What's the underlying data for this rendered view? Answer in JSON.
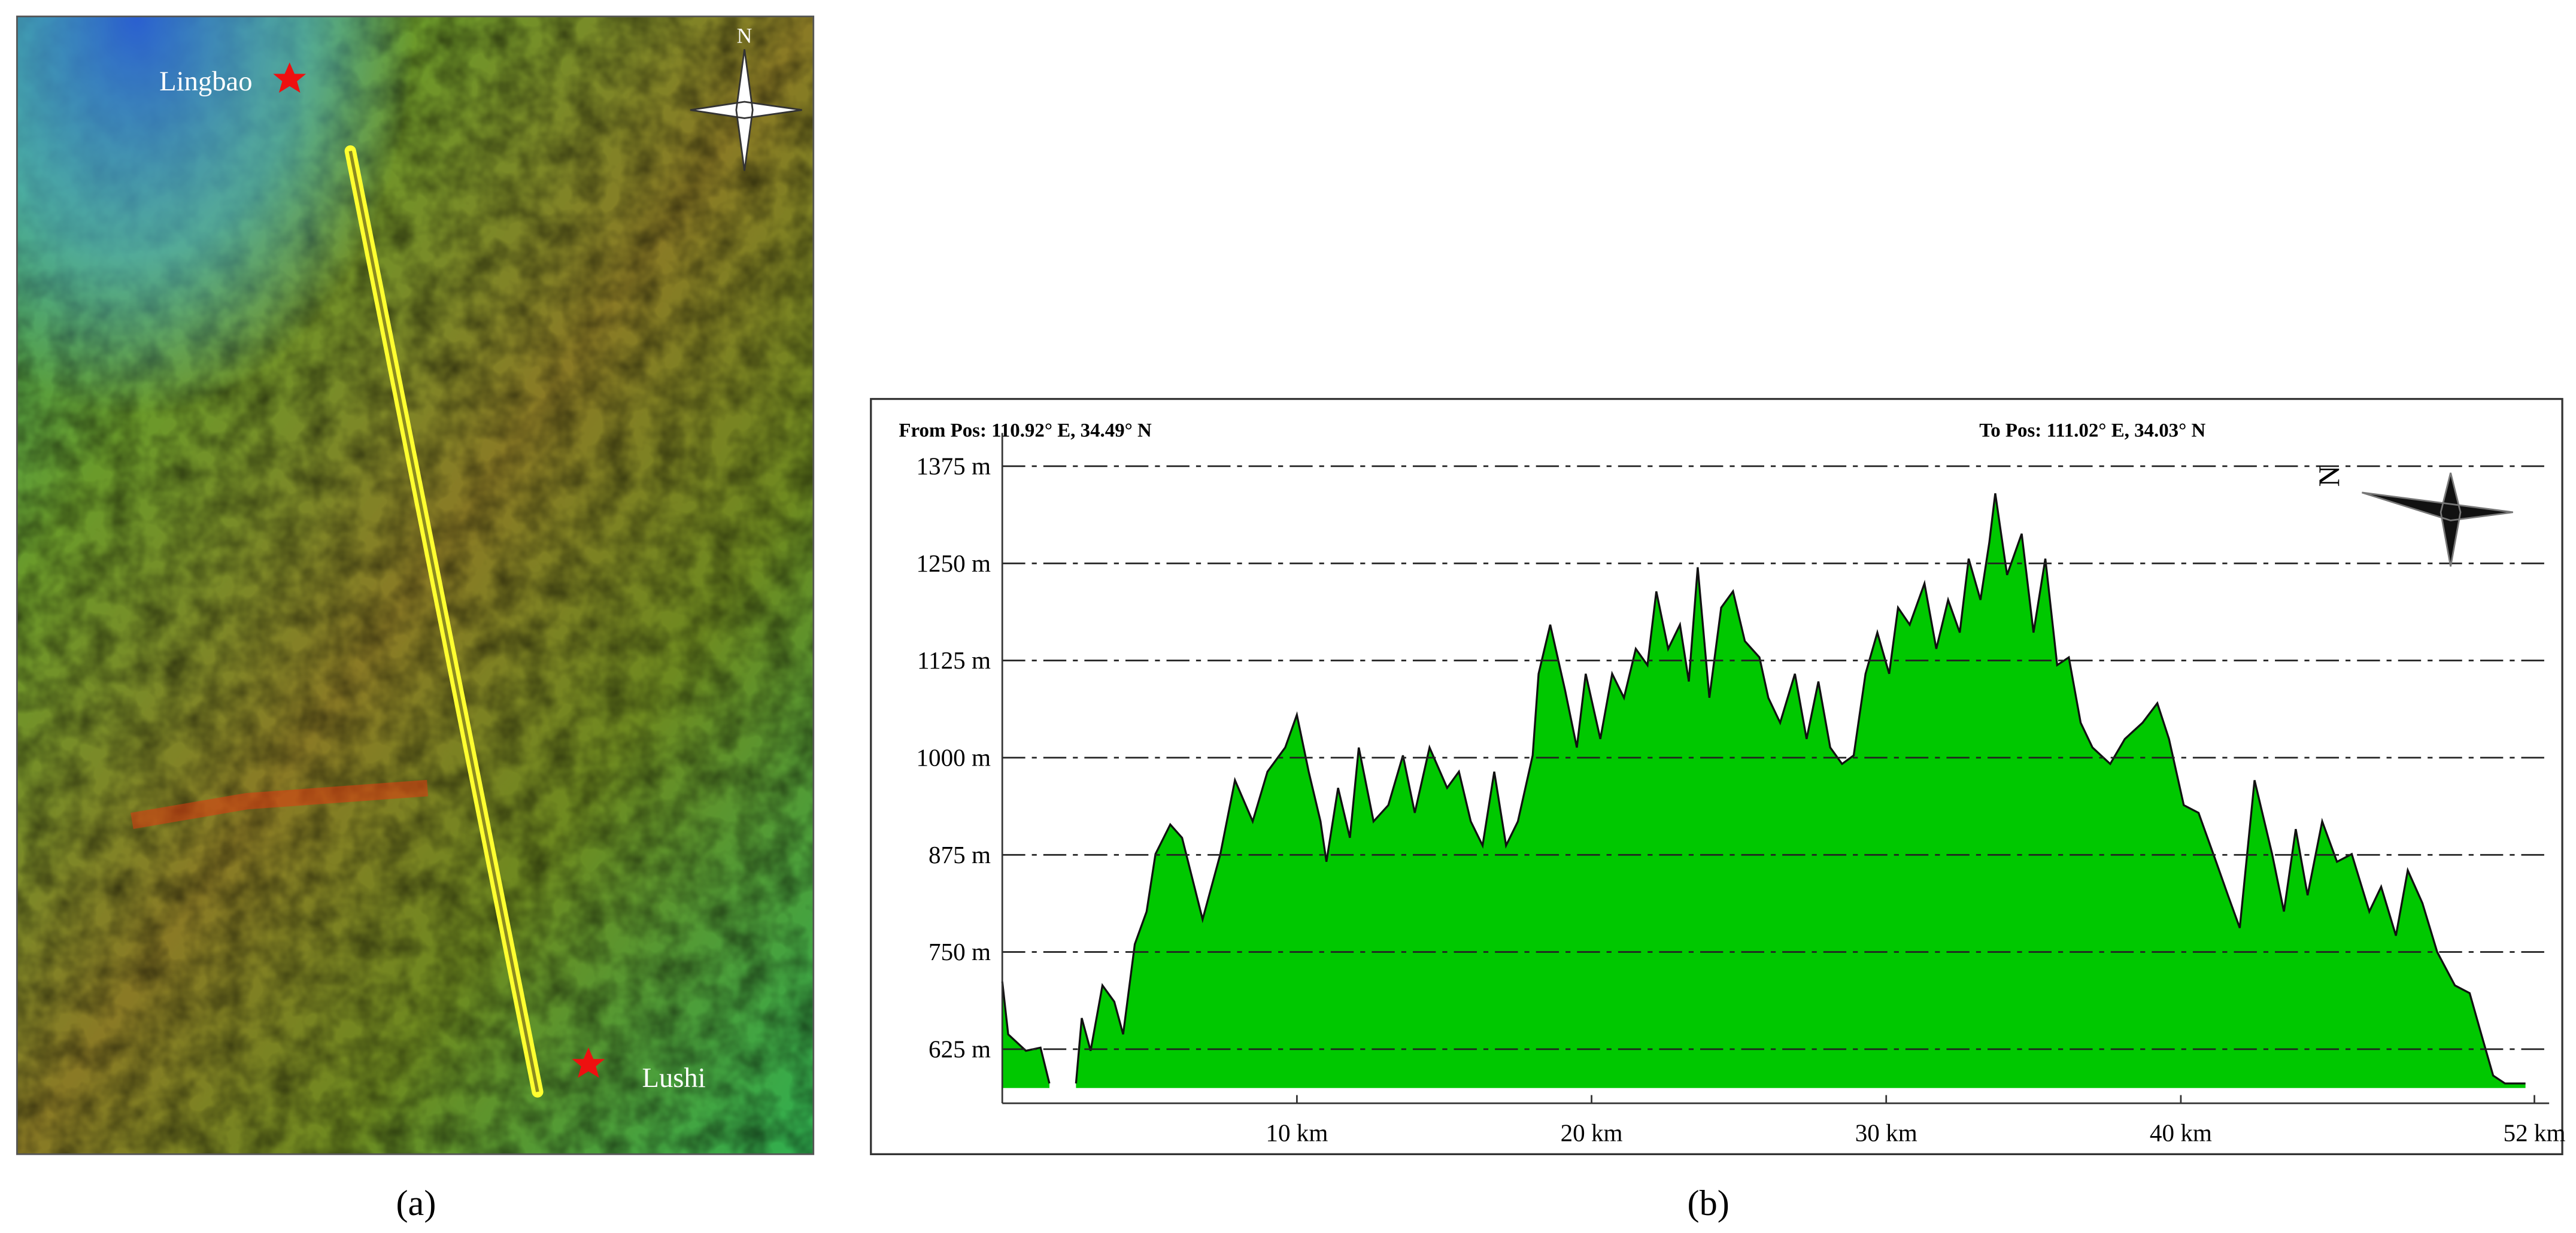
{
  "map": {
    "labels": [
      "Lingbao",
      "Lushi"
    ],
    "compass": "N"
  },
  "captions": [
    "(a)",
    "(b)"
  ],
  "chart_data": {
    "type": "area",
    "header_left": "From Pos:  110.92° E,  34.49° N",
    "header_right": "To Pos:  111.02° E,  34.03° N",
    "compass": "N",
    "x": [
      0,
      0.2,
      0.8,
      1.3,
      1.6,
      2.0,
      2.5,
      2.7,
      3.0,
      3.4,
      3.8,
      4.1,
      4.5,
      4.9,
      5.2,
      5.7,
      6.1,
      6.8,
      7.4,
      7.9,
      8.5,
      9.0,
      9.6,
      10.0,
      10.4,
      10.8,
      11.0,
      11.4,
      11.8,
      12.1,
      12.6,
      13.1,
      13.6,
      14.0,
      14.5,
      15.1,
      15.5,
      15.9,
      16.3,
      16.7,
      17.1,
      17.5,
      18.0,
      18.2,
      18.6,
      19.1,
      19.5,
      19.8,
      20.3,
      20.7,
      21.1,
      21.5,
      21.9,
      22.2,
      22.6,
      23.0,
      23.3,
      23.6,
      24.0,
      24.4,
      24.8,
      25.2,
      25.7,
      26.0,
      26.4,
      26.9,
      27.3,
      27.7,
      28.1,
      28.5,
      28.9,
      29.3,
      29.7,
      30.1,
      30.4,
      30.8,
      31.3,
      31.7,
      32.1,
      32.5,
      32.8,
      33.2,
      33.5,
      33.7,
      34.1,
      34.6,
      35.0,
      35.4,
      35.8,
      36.2,
      36.6,
      37.0,
      37.6,
      38.1,
      38.7,
      39.2,
      39.6,
      40.1,
      40.6,
      41.2,
      41.6,
      42.0,
      42.5,
      43.1,
      43.5,
      43.9,
      44.3,
      44.8,
      45.3,
      45.8,
      46.4,
      46.8,
      47.3,
      47.7,
      48.2,
      48.7,
      49.3,
      49.8,
      50.2,
      50.6,
      51.0,
      51.7
    ],
    "values": [
      712,
      644,
      623,
      627,
      581,
      null,
      581,
      665,
      623,
      707,
      686,
      644,
      760,
      802,
      876,
      914,
      897,
      792,
      876,
      971,
      918,
      982,
      1013,
      1055,
      982,
      918,
      866,
      961,
      897,
      1013,
      918,
      939,
      1003,
      929,
      1013,
      961,
      982,
      918,
      887,
      982,
      887,
      918,
      1003,
      1108,
      1171,
      1087,
      1013,
      1108,
      1024,
      1108,
      1077,
      1140,
      1119,
      1214,
      1140,
      1171,
      1098,
      1245,
      1077,
      1193,
      1214,
      1150,
      1129,
      1077,
      1045,
      1108,
      1024,
      1098,
      1013,
      992,
      1003,
      1108,
      1161,
      1108,
      1193,
      1171,
      1224,
      1140,
      1203,
      1161,
      1256,
      1203,
      1277,
      1340,
      1235,
      1288,
      1161,
      1256,
      1119,
      1129,
      1045,
      1013,
      992,
      1024,
      1045,
      1070,
      1024,
      939,
      929,
      866,
      823,
      781,
      971,
      876,
      802,
      908,
      823,
      918,
      866,
      876,
      802,
      834,
      771,
      855,
      813,
      750,
      707,
      697,
      644,
      591,
      581,
      581
    ],
    "color": "#00c800",
    "xlim": [
      0,
      52.5
    ],
    "xticks": [
      {
        "value": 10,
        "label": "10 km"
      },
      {
        "value": 20,
        "label": "20 km"
      },
      {
        "value": 30,
        "label": "30 km"
      },
      {
        "value": 40,
        "label": "40 km"
      },
      {
        "value": 52,
        "label": "52 km"
      }
    ],
    "ylim": [
      575,
      1460
    ],
    "yticks": [
      {
        "value": 625,
        "label": "625 m"
      },
      {
        "value": 750,
        "label": "750 m"
      },
      {
        "value": 875,
        "label": "875 m"
      },
      {
        "value": 1000,
        "label": "1000 m"
      },
      {
        "value": 1125,
        "label": "1125 m"
      },
      {
        "value": 1250,
        "label": "1250 m"
      },
      {
        "value": 1375,
        "label": "1375 m"
      }
    ],
    "grid": true
  }
}
